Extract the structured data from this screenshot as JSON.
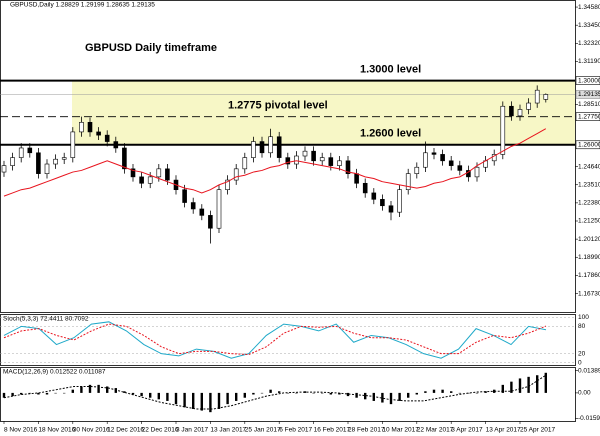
{
  "header": "GBPUSD,Daily 1.28829 1.29199 1.28635 1.29135",
  "chart_data": {
    "type": "candlestick",
    "title": "GBPUSD Daily timeframe",
    "dates": [
      "8 Nov 2016",
      "18 Nov 2016",
      "30 Nov 2016",
      "12 Dec 2016",
      "22 Dec 2016",
      "3 Jan 2017",
      "13 Jan 2017",
      "25 Jan 2017",
      "6 Feb 2017",
      "16 Feb 2017",
      "28 Feb 2017",
      "10 Mar 2017",
      "22 Mar 2017",
      "3 Apr 2017",
      "13 Apr 2017",
      "25 Apr 2017"
    ],
    "ohlc": [
      [
        1.243,
        1.25,
        1.24,
        1.247
      ],
      [
        1.247,
        1.255,
        1.244,
        1.252
      ],
      [
        1.252,
        1.261,
        1.249,
        1.258
      ],
      [
        1.258,
        1.261,
        1.252,
        1.255
      ],
      [
        1.255,
        1.258,
        1.239,
        1.242
      ],
      [
        1.242,
        1.251,
        1.239,
        1.248
      ],
      [
        1.248,
        1.254,
        1.245,
        1.251
      ],
      [
        1.251,
        1.255,
        1.248,
        1.252
      ],
      [
        1.252,
        1.271,
        1.249,
        1.268
      ],
      [
        1.268,
        1.2775,
        1.265,
        1.274
      ],
      [
        1.274,
        1.277,
        1.265,
        1.268
      ],
      [
        1.268,
        1.271,
        1.263,
        1.266
      ],
      [
        1.266,
        1.269,
        1.259,
        1.262
      ],
      [
        1.262,
        1.265,
        1.255,
        1.258
      ],
      [
        1.258,
        1.261,
        1.242,
        1.245
      ],
      [
        1.245,
        1.248,
        1.237,
        1.24
      ],
      [
        1.24,
        1.243,
        1.233,
        1.236
      ],
      [
        1.236,
        1.243,
        1.233,
        1.24
      ],
      [
        1.24,
        1.248,
        1.237,
        1.245
      ],
      [
        1.245,
        1.248,
        1.235,
        1.238
      ],
      [
        1.238,
        1.241,
        1.229,
        1.232
      ],
      [
        1.232,
        1.235,
        1.221,
        1.224
      ],
      [
        1.224,
        1.227,
        1.217,
        1.22
      ],
      [
        1.22,
        1.223,
        1.213,
        1.216
      ],
      [
        1.216,
        1.219,
        1.1985,
        1.208
      ],
      [
        1.208,
        1.235,
        1.205,
        1.232
      ],
      [
        1.232,
        1.241,
        1.229,
        1.238
      ],
      [
        1.238,
        1.248,
        1.235,
        1.245
      ],
      [
        1.245,
        1.255,
        1.242,
        1.252
      ],
      [
        1.252,
        1.265,
        1.249,
        1.262
      ],
      [
        1.262,
        1.265,
        1.252,
        1.255
      ],
      [
        1.255,
        1.27,
        1.252,
        1.265
      ],
      [
        1.265,
        1.268,
        1.249,
        1.252
      ],
      [
        1.252,
        1.255,
        1.245,
        1.248
      ],
      [
        1.248,
        1.256,
        1.245,
        1.253
      ],
      [
        1.253,
        1.259,
        1.25,
        1.256
      ],
      [
        1.256,
        1.259,
        1.247,
        1.25
      ],
      [
        1.25,
        1.255,
        1.247,
        1.252
      ],
      [
        1.252,
        1.255,
        1.244,
        1.247
      ],
      [
        1.247,
        1.253,
        1.244,
        1.25
      ],
      [
        1.25,
        1.253,
        1.239,
        1.242
      ],
      [
        1.242,
        1.245,
        1.233,
        1.236
      ],
      [
        1.236,
        1.239,
        1.227,
        1.23
      ],
      [
        1.23,
        1.233,
        1.223,
        1.226
      ],
      [
        1.226,
        1.229,
        1.219,
        1.222
      ],
      [
        1.222,
        1.225,
        1.213,
        1.218
      ],
      [
        1.218,
        1.235,
        1.215,
        1.232
      ],
      [
        1.232,
        1.245,
        1.229,
        1.242
      ],
      [
        1.242,
        1.249,
        1.239,
        1.246
      ],
      [
        1.246,
        1.262,
        1.243,
        1.255
      ],
      [
        1.255,
        1.258,
        1.251,
        1.254
      ],
      [
        1.254,
        1.257,
        1.247,
        1.25
      ],
      [
        1.25,
        1.253,
        1.244,
        1.247
      ],
      [
        1.247,
        1.25,
        1.241,
        1.244
      ],
      [
        1.244,
        1.247,
        1.237,
        1.24
      ],
      [
        1.24,
        1.249,
        1.237,
        1.246
      ],
      [
        1.246,
        1.253,
        1.243,
        1.25
      ],
      [
        1.25,
        1.257,
        1.247,
        1.254
      ],
      [
        1.254,
        1.287,
        1.251,
        1.284
      ],
      [
        1.284,
        1.287,
        1.275,
        1.278
      ],
      [
        1.278,
        1.285,
        1.275,
        1.282
      ],
      [
        1.282,
        1.289,
        1.279,
        1.286
      ],
      [
        1.286,
        1.297,
        1.283,
        1.294
      ],
      [
        1.28829,
        1.29199,
        1.28635,
        1.29135
      ]
    ],
    "ma": {
      "color": "#e8141e",
      "values": [
        1.228,
        1.23,
        1.232,
        1.233,
        1.235,
        1.237,
        1.239,
        1.241,
        1.243,
        1.244,
        1.246,
        1.248,
        1.25,
        1.248,
        1.246,
        1.244,
        1.243,
        1.241,
        1.239,
        1.237,
        1.235,
        1.233,
        1.232,
        1.23,
        1.232,
        1.235,
        1.237,
        1.24,
        1.241,
        1.243,
        1.244,
        1.246,
        1.247,
        1.249,
        1.25,
        1.249,
        1.248,
        1.247,
        1.246,
        1.245,
        1.243,
        1.242,
        1.24,
        1.239,
        1.237,
        1.236,
        1.235,
        1.234,
        1.233,
        1.234,
        1.236,
        1.237,
        1.239,
        1.24,
        1.243,
        1.247,
        1.25,
        1.253,
        1.256,
        1.259,
        1.261,
        1.264,
        1.267,
        1.27
      ]
    },
    "ylim": [
      1.1558,
      1.3502
    ],
    "yticks": [
      {
        "value": 1.3458,
        "label": "1.34580"
      },
      {
        "value": 1.3345,
        "label": "1.33450"
      },
      {
        "value": 1.3232,
        "label": "1.32320"
      },
      {
        "value": 1.3119,
        "label": "1.31190"
      },
      {
        "value": 1.2851,
        "label": "1.28510"
      },
      {
        "value": 1.2464,
        "label": "1.24640"
      },
      {
        "value": 1.2351,
        "label": "1.23510"
      },
      {
        "value": 1.2238,
        "label": "1.22380"
      },
      {
        "value": 1.2125,
        "label": "1.21250"
      },
      {
        "value": 1.2012,
        "label": "1.20120"
      },
      {
        "value": 1.1899,
        "label": "1.18990"
      },
      {
        "value": 1.1786,
        "label": "1.17860"
      },
      {
        "value": 1.1673,
        "label": "1.16730"
      }
    ],
    "levels": [
      {
        "value": 1.3,
        "label": "1.30000",
        "annotation": "1.3000 level",
        "style": "solid"
      },
      {
        "value": 1.2775,
        "label": "1.27750",
        "annotation": "1.2775 pivotal level",
        "style": "dashed"
      },
      {
        "value": 1.26,
        "label": "1.26000",
        "annotation": "1.2600 level",
        "style": "solid"
      }
    ],
    "zone_color": "#f7f7c6",
    "last_price": {
      "value": 1.29135,
      "label": "1.29135"
    },
    "stoch": {
      "label": "Stoch(5,3,3) 72.4411 80.7092",
      "k": {
        "color": "#1fa9c9",
        "values": [
          60,
          80,
          75,
          40,
          55,
          85,
          90,
          70,
          40,
          20,
          15,
          30,
          25,
          10,
          20,
          60,
          85,
          80,
          70,
          85,
          45,
          60,
          55,
          40,
          20,
          10,
          30,
          75,
          60,
          40,
          80,
          72.4411
        ]
      },
      "d": {
        "color": "#e8141e",
        "values": [
          55,
          70,
          75,
          60,
          50,
          70,
          85,
          80,
          60,
          35,
          20,
          25,
          25,
          20,
          18,
          35,
          65,
          80,
          78,
          80,
          65,
          55,
          55,
          50,
          35,
          20,
          20,
          45,
          60,
          55,
          65,
          80.7092
        ]
      },
      "ylim": [
        -5,
        105
      ],
      "yticks": [
        0,
        20,
        80,
        100
      ]
    },
    "macd": {
      "label": "MACD(12,26,9) 0.012522 0.011087",
      "histogram": [
        -0.003,
        -0.002,
        -0.001,
        0,
        -0.001,
        -0.001,
        0,
        0,
        0.002,
        0.004,
        0.005,
        0.005,
        0.004,
        0.003,
        0.001,
        -0.001,
        -0.002,
        -0.003,
        -0.004,
        -0.005,
        -0.007,
        -0.009,
        -0.01,
        -0.011,
        -0.012,
        -0.01,
        -0.007,
        -0.005,
        -0.003,
        -0.001,
        0,
        0.002,
        0.001,
        0,
        0,
        0.001,
        0,
        0,
        -0.001,
        -0.001,
        -0.002,
        -0.003,
        -0.004,
        -0.005,
        -0.006,
        -0.007,
        -0.005,
        -0.003,
        -0.001,
        0.001,
        0.002,
        0.002,
        0.001,
        0,
        0,
        0,
        0.001,
        0.002,
        0.005,
        0.007,
        0.009,
        0.01,
        0.011,
        0.012522
      ],
      "signal": {
        "values": [
          -0.003,
          -0.001,
          0,
          0.002,
          0.004,
          0.004,
          0.003,
          0,
          -0.003,
          -0.006,
          -0.008,
          -0.01,
          -0.01,
          -0.008,
          -0.005,
          -0.002,
          0,
          0.0005,
          0.0005,
          0,
          -0.001,
          -0.002,
          -0.004,
          -0.005,
          -0.005,
          -0.003,
          -0.001,
          0.0005,
          0.001,
          0.001,
          0.004,
          0.011087
        ]
      },
      "ylim": [
        -0.0175,
        0.0155
      ],
      "yticks": [
        0.013894,
        {
          "value": 0,
          "label": "0.00"
        },
        -0.015935
      ]
    }
  }
}
